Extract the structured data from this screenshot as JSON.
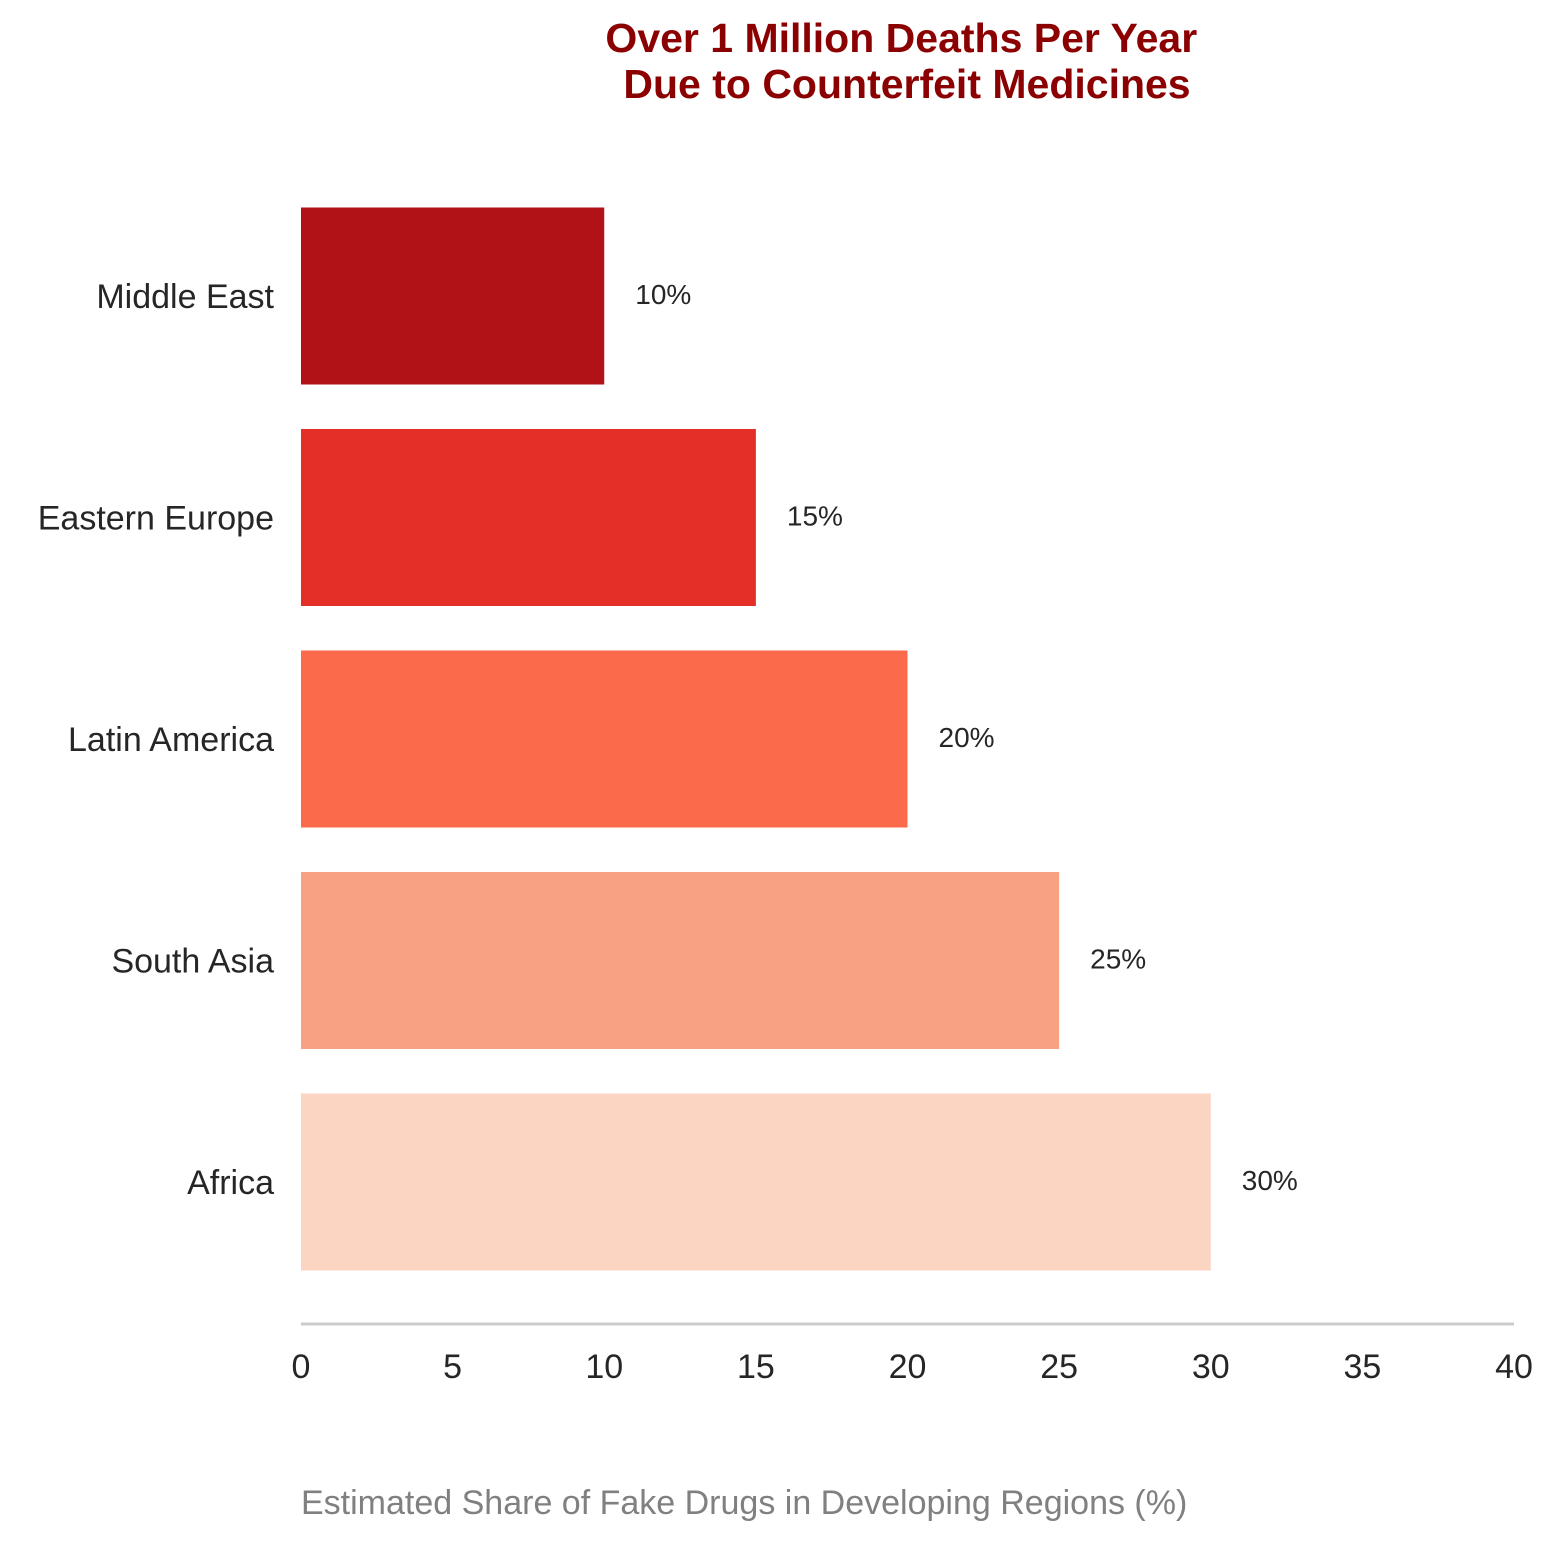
{
  "chart_data": {
    "type": "bar",
    "orientation": "horizontal",
    "title": "Over 1 Million Deaths Per Year\nDue to Counterfeit Medicines",
    "title_lines": [
      "Over 1 Million Deaths Per Year",
      "Due to Counterfeit Medicines"
    ],
    "xlabel": "Estimated Share of Fake Drugs in Developing Regions (%)",
    "ylabel": "",
    "categories": [
      "Middle East",
      "Eastern Europe",
      "Latin America",
      "South Asia",
      "Africa"
    ],
    "values": [
      10,
      15,
      20,
      25,
      30
    ],
    "value_labels": [
      "10%",
      "15%",
      "20%",
      "25%",
      "30%"
    ],
    "xlim": [
      0,
      40
    ],
    "xticks": [
      0,
      5,
      10,
      15,
      20,
      25,
      30,
      35,
      40
    ],
    "xtick_labels": [
      "0",
      "5",
      "10",
      "15",
      "20",
      "25",
      "30",
      "35",
      "40"
    ],
    "grid": false,
    "legend": "none"
  },
  "colors": {
    "title": "#8b0000",
    "bars": [
      "#b11218",
      "#e32f28",
      "#fb6a4b",
      "#f9a283",
      "#fcd4c2"
    ],
    "axis_line": "#cccccc",
    "label_text": "#262626",
    "axis_title_text": "#808080"
  }
}
